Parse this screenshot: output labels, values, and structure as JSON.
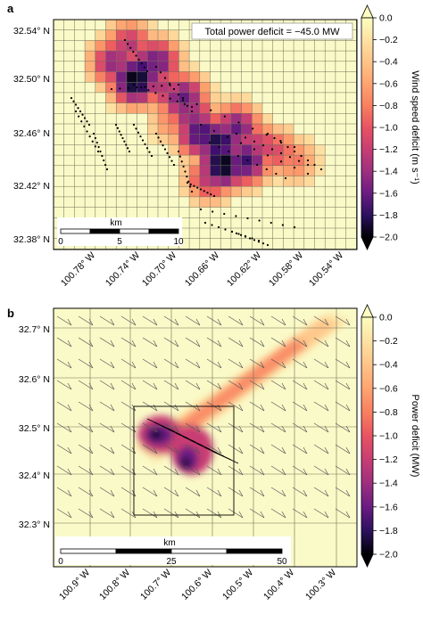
{
  "panels": [
    {
      "label": "a",
      "lat_ticks": [
        "32.54° N",
        "32.50° N",
        "32.46° N",
        "32.42° N",
        "32.38° N"
      ],
      "lon_ticks": [
        "100.78° W",
        "100.74° W",
        "100.70° W",
        "100.66° W",
        "100.62° W",
        "100.58° W",
        "100.54° W"
      ],
      "annotation": "Total power deficit = −45.0 MW",
      "scalebar": {
        "unit": "km",
        "ticks": [
          "0",
          "5",
          "10"
        ]
      },
      "colorbar": {
        "label": "Wind speed deficit (m s⁻¹)",
        "ticks": [
          "0.0",
          "−0.2",
          "−0.4",
          "−0.6",
          "−0.8",
          "−1.0",
          "−1.2",
          "−1.4",
          "−1.6",
          "−1.8",
          "−2.0"
        ],
        "range": [
          -2.0,
          0.0
        ]
      }
    },
    {
      "label": "b",
      "lat_ticks": [
        "32.7° N",
        "32.6° N",
        "32.5° N",
        "32.4° N",
        "32.3° N"
      ],
      "lon_ticks": [
        "100.9° W",
        "100.8° W",
        "100.7° W",
        "100.6° W",
        "100.5° W",
        "100.4° W",
        "100.3° W"
      ],
      "scalebar": {
        "unit": "km",
        "ticks": [
          "0",
          "25",
          "50"
        ]
      },
      "colorbar": {
        "label": "Power deficit (MW)",
        "ticks": [
          "0.0",
          "−0.2",
          "−0.4",
          "−0.6",
          "−0.8",
          "−1.0",
          "−1.2",
          "−1.4",
          "−1.6",
          "−1.8",
          "−2.0"
        ],
        "range": [
          -2.0,
          0.0
        ]
      }
    }
  ],
  "colors": {
    "background": "#fafac8",
    "colormap": [
      "#fcfdbf",
      "#fecf92",
      "#fe9f6d",
      "#f1605d",
      "#cd4071",
      "#9e2f7f",
      "#721f81",
      "#440f76",
      "#180f3d",
      "#000004"
    ]
  }
}
